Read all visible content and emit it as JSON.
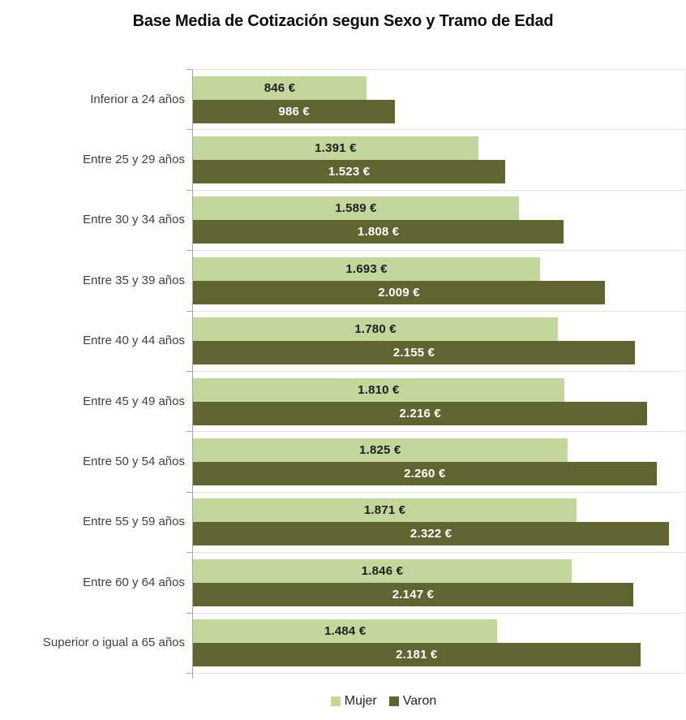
{
  "title": "Base Media de Cotización segun Sexo y Tramo de Edad",
  "colors": {
    "mujer_bar": "#c3d69b",
    "varon_bar": "#606430",
    "mujer_value_text": "#1f1f1f",
    "varon_value_text": "#ffffff",
    "axis_line": "#a6a6a6",
    "gridline": "#e9e5d6",
    "category_text": "#3f3f3f",
    "title_text": "#0d0d0d"
  },
  "chart_data": {
    "type": "bar",
    "orientation": "horizontal",
    "title": "Base Media de Cotización segun Sexo y Tramo de Edad",
    "xlabel": "",
    "ylabel": "",
    "xlim": [
      0,
      2400
    ],
    "grid": "category-separator-lines",
    "legend_position": "bottom",
    "categories": [
      "Inferior a 24 años",
      "Entre 25 y 29 años",
      "Entre 30 y 34 años",
      "Entre 35 y 39 años",
      "Entre 40 y 44 años",
      "Entre 45 y 49 años",
      "Entre 50 y 54 años",
      "Entre 55 y 59 años",
      "Entre 60 y 64 años",
      "Superior o igual a 65 años"
    ],
    "series": [
      {
        "name": "Mujer",
        "color": "#c3d69b",
        "label_color": "#1f1f1f",
        "values": [
          846,
          1391,
          1589,
          1693,
          1780,
          1810,
          1825,
          1871,
          1846,
          1484
        ],
        "labels": [
          "846 €",
          "1.391 €",
          "1.589 €",
          "1.693 €",
          "1.780 €",
          "1.810 €",
          "1.825 €",
          "1.871 €",
          "1.846 €",
          "1.484 €"
        ]
      },
      {
        "name": "Varon",
        "color": "#606430",
        "label_color": "#ffffff",
        "values": [
          986,
          1523,
          1808,
          2009,
          2155,
          2216,
          2260,
          2322,
          2147,
          2181
        ],
        "labels": [
          "986 €",
          "1.523 €",
          "1.808 €",
          "2.009 €",
          "2.155 €",
          "2.216 €",
          "2.260 €",
          "2.322 €",
          "2.147 €",
          "2.181 €"
        ]
      }
    ]
  }
}
